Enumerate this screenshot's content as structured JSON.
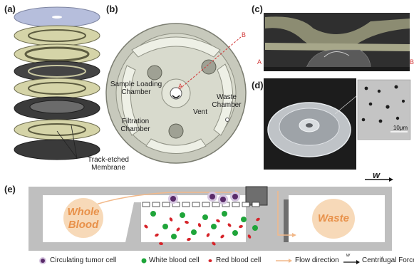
{
  "panels": {
    "a": "(a)",
    "b": "(b)",
    "c": "(c)",
    "d": "(d)",
    "e": "(e)"
  },
  "panel_a": {
    "membrane_label": "Track-etched\nMembrane"
  },
  "panel_b": {
    "sample_loading": "Sample Loading\nChamber",
    "waste": "Waste\nChamber",
    "vent": "Vent",
    "filtration": "Filtration\nChamber",
    "point_a": "A",
    "point_b": "B"
  },
  "panel_c": {
    "point_a": "A",
    "point_b": "B"
  },
  "panel_d": {
    "scale": "10μm"
  },
  "panel_e": {
    "omega": "w",
    "whole_blood": "Whole\nBlood",
    "waste": "Waste"
  },
  "legend": {
    "ctc": "Circulating tumor cell",
    "wbc": "White blood cell",
    "rbc": "Red blood cell",
    "flow": "Flow direction",
    "omega": "w",
    "force": "Centrifugal Force"
  },
  "colors": {
    "layer_gold": "#cfcfa0",
    "layer_dark": "#3a3a3a",
    "layer_blue": "#b6bedc",
    "chamber_fill": "#f7d9b8",
    "blob_text": "#e8914a",
    "ctc": "#6b3a7a",
    "wbc": "#1fa53a",
    "rbc": "#d6242a",
    "flow": "#f2b98a"
  }
}
